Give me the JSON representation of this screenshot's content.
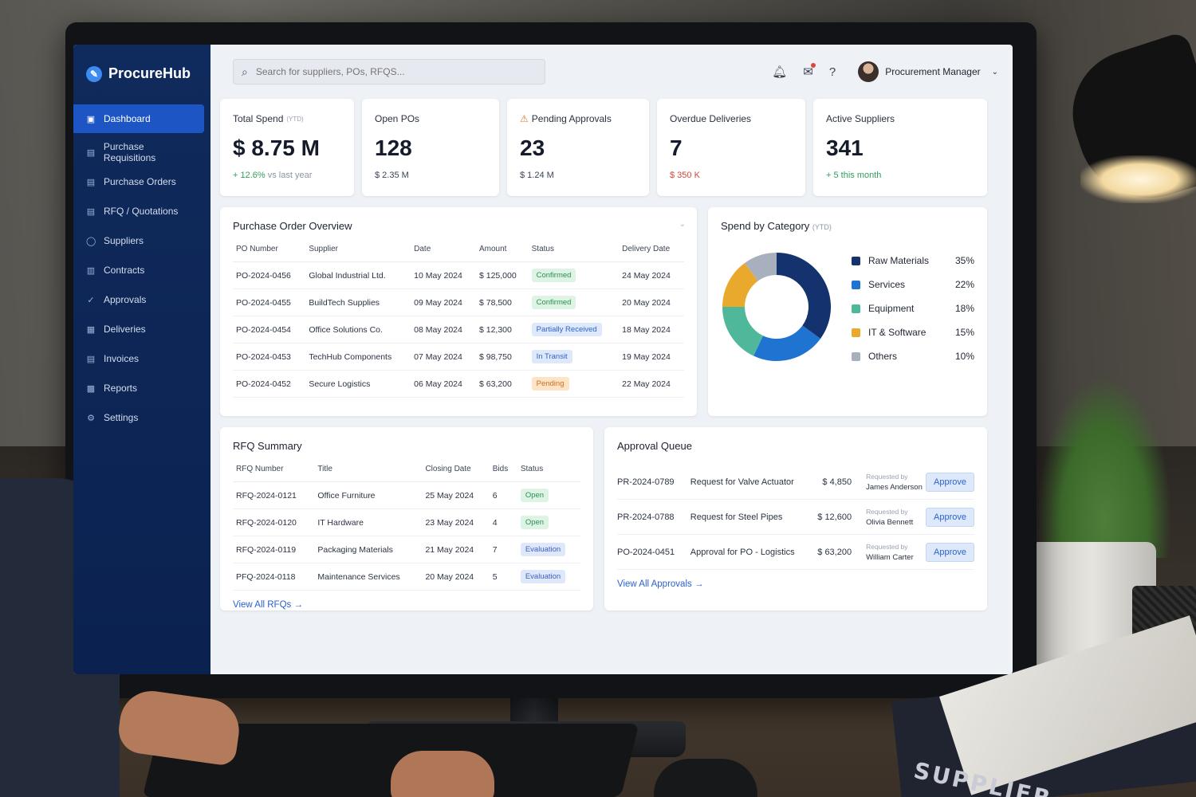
{
  "app": {
    "name": "ProcureHub"
  },
  "sidebar": {
    "items": [
      {
        "label": "Dashboard",
        "icon": "dashboard-icon",
        "active": true
      },
      {
        "label": "Purchase Requisitions",
        "icon": "document-icon"
      },
      {
        "label": "Purchase Orders",
        "icon": "document-icon"
      },
      {
        "label": "RFQ / Quotations",
        "icon": "document-icon"
      },
      {
        "label": "Suppliers",
        "icon": "user-icon"
      },
      {
        "label": "Contracts",
        "icon": "contract-icon"
      },
      {
        "label": "Approvals",
        "icon": "check-icon"
      },
      {
        "label": "Deliveries",
        "icon": "delivery-icon"
      },
      {
        "label": "Invoices",
        "icon": "invoice-icon"
      },
      {
        "label": "Reports",
        "icon": "reports-icon"
      },
      {
        "label": "Settings",
        "icon": "gear-icon"
      }
    ]
  },
  "search": {
    "placeholder": "Search for suppliers, POs, RFQS..."
  },
  "user": {
    "name": "Procurement Manager"
  },
  "kpis": {
    "total_spend": {
      "title": "Total Spend",
      "tag": "(YTD)",
      "value": "$ 8.75 M",
      "change": "+ 12.6%",
      "change_note": "vs last year"
    },
    "open_pos": {
      "title": "Open POs",
      "value": "128",
      "sub": "$ 2.35 M"
    },
    "pending_approvals": {
      "title": "Pending Approvals",
      "value": "23",
      "sub": "$ 1.24 M"
    },
    "overdue_deliveries": {
      "title": "Overdue Deliveries",
      "value": "7",
      "sub": "$ 350 K"
    },
    "active_suppliers": {
      "title": "Active Suppliers",
      "value": "341",
      "sub": "+ 5 this month"
    }
  },
  "po_overview": {
    "title": "Purchase Order Overview",
    "columns": [
      "PO Number",
      "Supplier",
      "Date",
      "Amount",
      "Status",
      "Delivery Date"
    ],
    "rows": [
      {
        "po": "PO-2024-0456",
        "supplier": "Global Industrial Ltd.",
        "date": "10 May 2024",
        "amount": "$ 125,000",
        "status": "Confirmed",
        "delivery": "24 May 2024"
      },
      {
        "po": "PO-2024-0455",
        "supplier": "BuildTech Supplies",
        "date": "09 May 2024",
        "amount": "$ 78,500",
        "status": "Confirmed",
        "delivery": "20 May 2024"
      },
      {
        "po": "PO-2024-0454",
        "supplier": "Office Solutions Co.",
        "date": "08 May 2024",
        "amount": "$ 12,300",
        "status": "Partially Received",
        "delivery": "18 May 2024"
      },
      {
        "po": "PO-2024-0453",
        "supplier": "TechHub Components",
        "date": "07 May 2024",
        "amount": "$ 98,750",
        "status": "In Transit",
        "delivery": "19 May 2024"
      },
      {
        "po": "PO-2024-0452",
        "supplier": "Secure Logistics",
        "date": "06 May 2024",
        "amount": "$ 63,200",
        "status": "Pending",
        "delivery": "22 May 2024"
      }
    ]
  },
  "spend_by_category": {
    "title": "Spend by Category",
    "tag": "(YTD)"
  },
  "chart_data": {
    "type": "pie",
    "categories": [
      "Raw Materials",
      "Services",
      "Equipment",
      "IT & Software",
      "Others"
    ],
    "values": [
      35,
      22,
      18,
      15,
      10
    ],
    "labels": [
      "35%",
      "22%",
      "18%",
      "15%",
      "10%"
    ],
    "colors": [
      "#14336e",
      "#1f74d1",
      "#4fb79a",
      "#e8a92d",
      "#a9b0bd"
    ],
    "legend": "right"
  },
  "rfq_summary": {
    "title": "RFQ Summary",
    "columns": [
      "RFQ Number",
      "Title",
      "Closing Date",
      "Bids",
      "Status"
    ],
    "rows": [
      {
        "rfq": "RFQ-2024-0121",
        "title": "Office Furniture",
        "closing": "25 May 2024",
        "bids": "6",
        "status": "Open"
      },
      {
        "rfq": "RFQ-2024-0120",
        "title": "IT Hardware",
        "closing": "23 May 2024",
        "bids": "4",
        "status": "Open"
      },
      {
        "rfq": "RFQ-2024-0119",
        "title": "Packaging Materials",
        "closing": "21 May 2024",
        "bids": "7",
        "status": "Evaluation"
      },
      {
        "rfq": "PFQ-2024-0118",
        "title": "Maintenance Services",
        "closing": "20 May 2024",
        "bids": "5",
        "status": "Evaluation"
      }
    ],
    "view_all": "View All RFQs"
  },
  "approval_queue": {
    "title": "Approval Queue",
    "requested_by_label": "Requested by",
    "approve_label": "Approve",
    "rows": [
      {
        "id": "PR-2024-0789",
        "title": "Request for Valve Actuator",
        "amount": "$ 4,850",
        "requester": "James Anderson"
      },
      {
        "id": "PR-2024-0788",
        "title": "Request for Steel Pipes",
        "amount": "$ 12,600",
        "requester": "Olivia Bennett"
      },
      {
        "id": "PO-2024-0451",
        "title": "Approval for PO - Logistics",
        "amount": "$ 63,200",
        "requester": "William Carter"
      }
    ],
    "view_all": "View All Approvals"
  },
  "environment": {
    "book_label": "SUPPLIER"
  }
}
